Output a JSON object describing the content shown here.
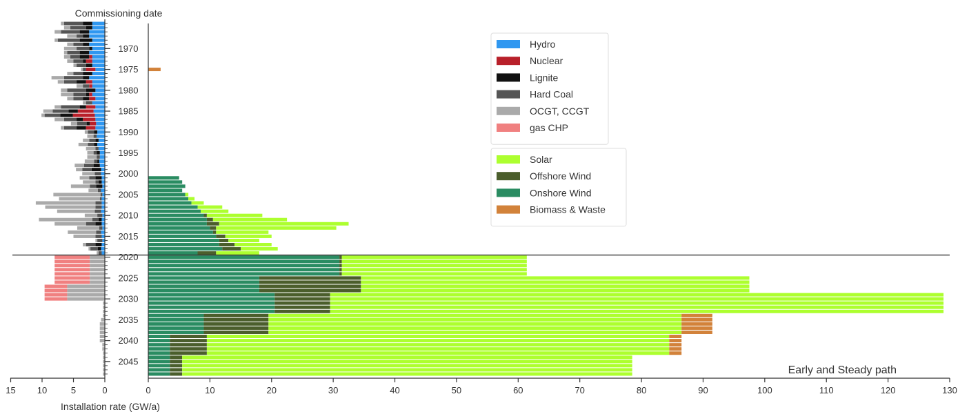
{
  "labels": {
    "top_title": "Commissioning date",
    "xlabel": "Installation rate (GW/a)",
    "scenario": "Early and Steady path"
  },
  "legend_groups": [
    {
      "items": [
        {
          "key": "hydro",
          "label": "Hydro"
        },
        {
          "key": "nuclear",
          "label": "Nuclear"
        },
        {
          "key": "lignite",
          "label": "Lignite"
        },
        {
          "key": "hardcoal",
          "label": "Hard Coal"
        },
        {
          "key": "gas",
          "label": "OCGT, CCGT"
        },
        {
          "key": "gaschp",
          "label": "gas CHP"
        }
      ]
    },
    {
      "items": [
        {
          "key": "solar",
          "label": "Solar"
        },
        {
          "key": "offshore",
          "label": "Offshore Wind"
        },
        {
          "key": "onshore",
          "label": "Onshore Wind"
        },
        {
          "key": "biomass",
          "label": "Biomass & Waste"
        }
      ]
    }
  ],
  "colors": {
    "hydro": "#2f97f0",
    "nuclear": "#b8202a",
    "lignite": "#111111",
    "hardcoal": "#555555",
    "gas": "#aaaaaa",
    "gaschp": "#f08080",
    "solar": "#adff2f",
    "offshore": "#4b5e2c",
    "onshore": "#2a8c62",
    "biomass": "#d2823a",
    "gridline": "#333333"
  },
  "chart_data": [
    {
      "type": "bar",
      "orientation": "horizontal",
      "stacked": true,
      "panel": "left (conventional)",
      "x_direction": "reversed",
      "xlim": [
        15,
        0
      ],
      "xticks": [
        "15",
        "10",
        "5",
        "0"
      ],
      "ylabel": "Commissioning date",
      "ylim": [
        1963,
        2049
      ],
      "yticks": [
        "1970",
        "1975",
        "1980",
        "1985",
        "1990",
        "1995",
        "2000",
        "2005",
        "2010",
        "2015",
        "2020",
        "2025",
        "2030",
        "2035",
        "2040",
        "2045"
      ],
      "series_order": [
        "hydro",
        "nuclear",
        "lignite",
        "hardcoal",
        "gas",
        "gaschp"
      ],
      "years": [
        1964,
        1965,
        1966,
        1967,
        1968,
        1969,
        1970,
        1971,
        1972,
        1973,
        1974,
        1975,
        1976,
        1977,
        1978,
        1979,
        1980,
        1981,
        1982,
        1983,
        1984,
        1985,
        1986,
        1987,
        1988,
        1989,
        1990,
        1991,
        1992,
        1993,
        1994,
        1995,
        1996,
        1997,
        1998,
        1999,
        2000,
        2001,
        2002,
        2003,
        2004,
        2005,
        2006,
        2007,
        2008,
        2009,
        2010,
        2011,
        2012,
        2013,
        2014,
        2015,
        2016,
        2017,
        2018,
        2019,
        2020,
        2021,
        2022,
        2023,
        2024,
        2025,
        2026,
        2027,
        2028,
        2029,
        2030,
        2031,
        2032,
        2033,
        2034,
        2035,
        2036,
        2037,
        2038,
        2039,
        2040,
        2041,
        2042,
        2043,
        2044,
        2045,
        2046,
        2047,
        2048
      ],
      "series": [
        {
          "key": "hydro",
          "name": "Hydro",
          "values": [
            2,
            2,
            2.5,
            2.5,
            2,
            2.5,
            2,
            2.5,
            2,
            2,
            2,
            1.5,
            2,
            2.5,
            2,
            2,
            1.5,
            2,
            1.5,
            2,
            1.5,
            1.8,
            1.6,
            1.5,
            1.4,
            1.5,
            1.2,
            1.3,
            1.0,
            1.2,
            1.0,
            0.8,
            0.8,
            0.9,
            0.8,
            0.6,
            0.6,
            0.5,
            0.5,
            0.4,
            0.6,
            0.4,
            0.5,
            0.5,
            0.5,
            0.6,
            0.4,
            0.5,
            0.5,
            0.4,
            0.6,
            0.5,
            0.4,
            0.5,
            0.6,
            0.5,
            0,
            0,
            0,
            0,
            0,
            0,
            0,
            0,
            0,
            0,
            0,
            0,
            0,
            0,
            0,
            0,
            0,
            0,
            0,
            0,
            0,
            0,
            0,
            0,
            0,
            0,
            0,
            0,
            0
          ]
        },
        {
          "key": "nuclear",
          "name": "Nuclear",
          "values": [
            0,
            0,
            0,
            0,
            0,
            0,
            0,
            0,
            0.5,
            1.0,
            0,
            1.5,
            0,
            0,
            1.0,
            0.5,
            0,
            0.5,
            1.0,
            0,
            1.5,
            2.5,
            3.5,
            2.0,
            1.0,
            1.5,
            0,
            0,
            0,
            0,
            0,
            0,
            0,
            0,
            0,
            0,
            0,
            0,
            0,
            0,
            0,
            0,
            0,
            0,
            0,
            0,
            0,
            0,
            0,
            0,
            0,
            0,
            0,
            0,
            0,
            0,
            0,
            0,
            0,
            0,
            0,
            0,
            0,
            0,
            0,
            0,
            0,
            0,
            0,
            0,
            0,
            0,
            0,
            0,
            0,
            0,
            0,
            0,
            0,
            0,
            0,
            0,
            0,
            0,
            0
          ]
        },
        {
          "key": "lignite",
          "name": "Lignite",
          "values": [
            1.5,
            1.0,
            1.5,
            1.0,
            2.0,
            1.0,
            0.5,
            1.5,
            1.5,
            0.5,
            1.0,
            0,
            1.5,
            1.0,
            1.5,
            0,
            1.5,
            0.5,
            1.0,
            0,
            1.0,
            1.5,
            2.0,
            1.0,
            0.5,
            1.5,
            0.5,
            0,
            0.5,
            0.5,
            0,
            0.5,
            0,
            0.3,
            1.0,
            1.5,
            0,
            1.0,
            0.5,
            1.0,
            0,
            0,
            0,
            0,
            0,
            0,
            0,
            0.5,
            1.0,
            0,
            0,
            0,
            0,
            1.0,
            0.5,
            0,
            0,
            0,
            0,
            0,
            0,
            0,
            0,
            0,
            0,
            0,
            0,
            0,
            0,
            0,
            0,
            0,
            0,
            0,
            0,
            0,
            0,
            0,
            0,
            0,
            0,
            0,
            0,
            0,
            0
          ]
        },
        {
          "key": "hardcoal",
          "name": "Hard Coal",
          "values": [
            3.0,
            2.5,
            3.0,
            1.0,
            3.5,
            1.5,
            2.0,
            2.0,
            1.5,
            1.5,
            1.5,
            0.5,
            1.5,
            3.0,
            2.0,
            1.0,
            3.0,
            2.0,
            1.5,
            1.0,
            3.0,
            2.5,
            2.5,
            2.0,
            1.5,
            2.0,
            1.0,
            0.5,
            1.0,
            1.0,
            0.5,
            0.5,
            0.5,
            0.5,
            1.5,
            1.5,
            1.0,
            1.0,
            0.5,
            1.0,
            0.5,
            0.3,
            0.3,
            1.0,
            1.0,
            1.0,
            0.8,
            1.0,
            1.5,
            0.5,
            0.8,
            1.0,
            0.8,
            1.5,
            1.2,
            0.5,
            0,
            0,
            0,
            0,
            0,
            0,
            0,
            0,
            0,
            0,
            0,
            0,
            0,
            0,
            0,
            0,
            0,
            0,
            0,
            0,
            0,
            0,
            0,
            0,
            0,
            0,
            0,
            0,
            0
          ]
        },
        {
          "key": "gas",
          "name": "OCGT, CCGT",
          "values": [
            0.5,
            1.0,
            1.0,
            1.5,
            0.5,
            1.0,
            2.0,
            0.5,
            1.0,
            1.0,
            0.5,
            0.3,
            1.0,
            2.0,
            1.0,
            1.0,
            1.0,
            2.0,
            1.0,
            0.5,
            1.0,
            1.5,
            0.5,
            1.5,
            1.0,
            0.5,
            0.5,
            1.0,
            1.0,
            1.5,
            1.5,
            1.0,
            1.5,
            1.5,
            1.5,
            1.0,
            2.0,
            1.5,
            2.0,
            3.0,
            1.5,
            7.5,
            6.5,
            9.5,
            8.0,
            6.0,
            2.0,
            8.5,
            5.0,
            3.5,
            4.5,
            3.5,
            0.3,
            0.5,
            0.3,
            0.3,
            2.4,
            2.4,
            2.4,
            2.4,
            2.4,
            2.4,
            2.4,
            6.0,
            6.0,
            6.0,
            6.0,
            0.3,
            0.3,
            0.3,
            0.3,
            0.6,
            0.8,
            0.8,
            0.8,
            0.8,
            0.8,
            0.4,
            0.4,
            0.3,
            0.3,
            0.3,
            0.3,
            0.3,
            0.3
          ]
        },
        {
          "key": "gaschp",
          "name": "gas CHP",
          "values": [
            0,
            0,
            0,
            0,
            0,
            0,
            0,
            0,
            0,
            0,
            0,
            0,
            0,
            0,
            0,
            0,
            0,
            0,
            0,
            0,
            0,
            0,
            0,
            0,
            0,
            0,
            0,
            0,
            0,
            0,
            0,
            0,
            0,
            0,
            0,
            0,
            0,
            0,
            0,
            0,
            0,
            0,
            0,
            0,
            0,
            0,
            0,
            0,
            0,
            0,
            0,
            0,
            0,
            0,
            0,
            0,
            5.6,
            5.6,
            5.6,
            5.6,
            5.6,
            5.6,
            5.6,
            3.6,
            3.6,
            3.6,
            3.6,
            0,
            0,
            0,
            0,
            0,
            0,
            0,
            0,
            0,
            0,
            0,
            0,
            0,
            0,
            0,
            0,
            0,
            0
          ]
        }
      ]
    },
    {
      "type": "bar",
      "orientation": "horizontal",
      "stacked": true,
      "panel": "right (renewables)",
      "xlabel": "Installation rate (GW/a)",
      "xlim": [
        0,
        130
      ],
      "xticks": [
        "0",
        "10",
        "20",
        "30",
        "40",
        "50",
        "60",
        "70",
        "80",
        "90",
        "100",
        "110",
        "120",
        "130"
      ],
      "ylim": [
        1963,
        2049
      ],
      "horizontal_line_y": 2019,
      "series_order": [
        "onshore",
        "offshore",
        "solar",
        "biomass"
      ],
      "years": [
        1975,
        2001,
        2002,
        2003,
        2004,
        2005,
        2006,
        2007,
        2008,
        2009,
        2010,
        2011,
        2012,
        2013,
        2014,
        2015,
        2016,
        2017,
        2018,
        2019,
        2020,
        2021,
        2022,
        2023,
        2024,
        2025,
        2026,
        2027,
        2028,
        2029,
        2030,
        2031,
        2032,
        2033,
        2034,
        2035,
        2036,
        2037,
        2038,
        2039,
        2040,
        2041,
        2042,
        2043,
        2044,
        2045,
        2046,
        2047,
        2048
      ],
      "series": [
        {
          "key": "onshore",
          "name": "Onshore Wind",
          "values": [
            0,
            5.0,
            5.5,
            6.0,
            5.5,
            6.0,
            6.5,
            7.0,
            8.0,
            8.5,
            9.0,
            9.5,
            9.5,
            10.0,
            10.5,
            11.0,
            11.5,
            11.5,
            12.0,
            8.0,
            31.0,
            31.0,
            31.0,
            31.0,
            31.0,
            18.0,
            18.0,
            18.0,
            18.0,
            20.5,
            20.5,
            20.5,
            20.5,
            20.5,
            9.0,
            9.0,
            9.0,
            9.0,
            9.0,
            3.5,
            3.5,
            3.5,
            3.5,
            3.5,
            3.5,
            3.5,
            3.5,
            3.5,
            3.5
          ]
        },
        {
          "key": "offshore",
          "name": "Offshore Wind",
          "values": [
            0,
            0,
            0,
            0,
            0,
            0,
            0,
            0,
            0,
            0,
            0.5,
            1.0,
            2.0,
            1.0,
            0.5,
            1.5,
            1.5,
            2.5,
            3.0,
            3.0,
            0.4,
            0.4,
            0.4,
            0.4,
            0.4,
            16.5,
            16.5,
            16.5,
            16.5,
            9.0,
            9.0,
            9.0,
            9.0,
            9.0,
            10.5,
            10.5,
            10.5,
            10.5,
            10.5,
            6.0,
            6.0,
            6.0,
            6.0,
            6.0,
            2.0,
            2.0,
            2.0,
            2.0,
            2.0
          ]
        },
        {
          "key": "solar",
          "name": "Solar",
          "values": [
            0,
            0,
            0,
            0,
            0,
            0.5,
            1.0,
            2.0,
            4.0,
            4.5,
            9.0,
            12.0,
            21.0,
            19.5,
            8.5,
            7.5,
            5.0,
            6.0,
            6.0,
            7.0,
            30.0,
            30.0,
            30.0,
            30.0,
            30.0,
            63.0,
            63.0,
            63.0,
            63.0,
            99.5,
            99.5,
            99.5,
            99.5,
            99.5,
            67.0,
            67.0,
            67.0,
            67.0,
            67.0,
            75.0,
            75.0,
            75.0,
            75.0,
            75.0,
            73.0,
            73.0,
            73.0,
            73.0,
            73.0
          ]
        },
        {
          "key": "biomass",
          "name": "Biomass & Waste",
          "values": [
            2.0,
            0,
            0,
            0,
            0,
            0,
            0,
            0,
            0,
            0,
            0,
            0,
            0,
            0,
            0,
            0,
            0,
            0,
            0,
            0,
            0,
            0,
            0,
            0,
            0,
            0,
            0,
            0,
            0,
            0,
            0,
            0,
            0,
            0,
            5.0,
            5.0,
            5.0,
            5.0,
            5.0,
            2.0,
            2.0,
            2.0,
            2.0,
            2.0,
            0,
            0,
            0,
            0,
            0
          ]
        }
      ]
    }
  ]
}
